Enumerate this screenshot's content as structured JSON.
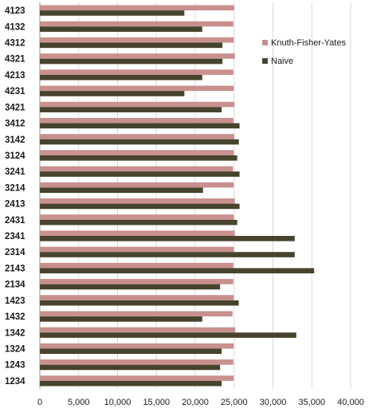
{
  "chart_data": {
    "type": "bar",
    "orientation": "horizontal",
    "categories": [
      "4123",
      "4132",
      "4312",
      "4321",
      "4213",
      "4231",
      "3421",
      "3412",
      "3142",
      "3124",
      "3241",
      "3214",
      "2413",
      "2431",
      "2341",
      "2314",
      "2143",
      "2134",
      "1423",
      "1432",
      "1342",
      "1324",
      "1243",
      "1234"
    ],
    "series": [
      {
        "name": "Knuth-Fisher-Yates",
        "color": "#c8908f",
        "values": [
          25000,
          24900,
          24950,
          25100,
          24900,
          24950,
          25050,
          24900,
          25000,
          24950,
          24850,
          24950,
          25100,
          24950,
          25100,
          24950,
          24900,
          24900,
          24950,
          24800,
          25150,
          24950,
          24900,
          24950
        ]
      },
      {
        "name": "Naive",
        "color": "#47432c",
        "values": [
          18600,
          20900,
          23500,
          23500,
          20900,
          18600,
          23400,
          25700,
          25600,
          25400,
          25700,
          21000,
          25700,
          25400,
          32800,
          32800,
          35300,
          23200,
          25600,
          20900,
          33000,
          23400,
          23200,
          23400
        ]
      }
    ],
    "xlim": [
      0,
      40000
    ],
    "xticks": [
      "0",
      "5,000",
      "10,000",
      "15,000",
      "20,000",
      "25,000",
      "30,000",
      "35,000",
      "40,000"
    ],
    "grid": true,
    "legend": "right"
  }
}
